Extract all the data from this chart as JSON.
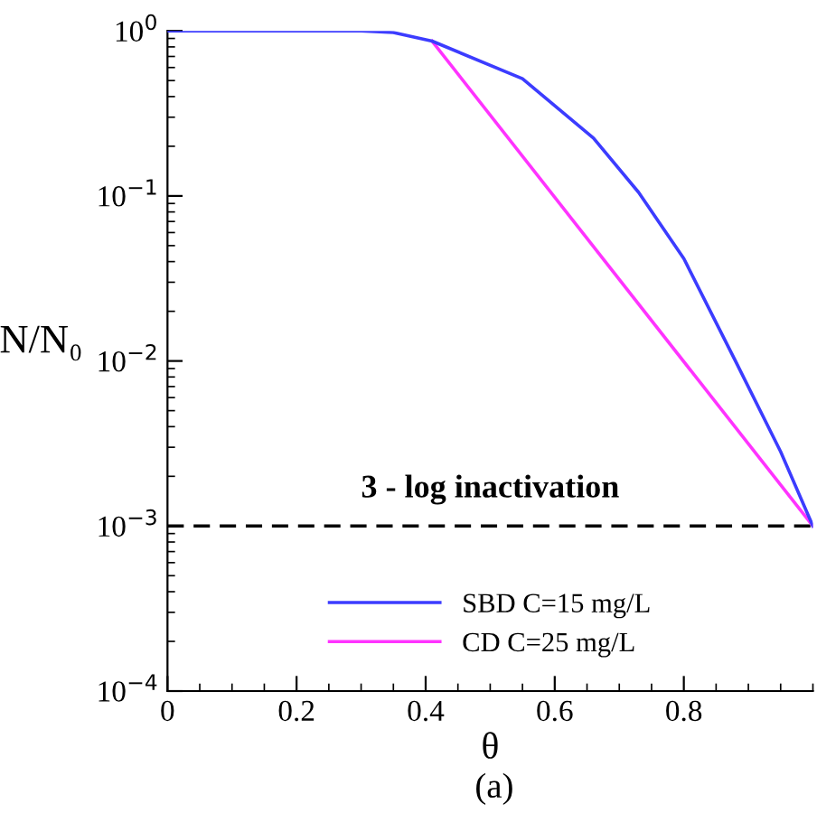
{
  "chart_data": {
    "type": "line",
    "xlabel": "θ",
    "ylabel": "N/N₀",
    "annotations": [
      "(a)"
    ],
    "series": [
      {
        "name": "SBD C=15 mg/L",
        "color": "#3c3cff",
        "x": [
          0,
          0.3,
          0.35,
          0.41,
          0.55,
          0.66,
          0.73,
          0.8,
          0.88,
          0.95,
          1.0
        ],
        "values": [
          1,
          1,
          0.977,
          0.867,
          0.513,
          0.224,
          0.105,
          0.0417,
          0.01,
          0.00282,
          0.001
        ]
      },
      {
        "name": "CD C=25 mg/L",
        "color": "#ff33ff",
        "x": [
          0.41,
          1.0
        ],
        "values": [
          0.867,
          0.001
        ]
      }
    ],
    "log": "y",
    "xlim": [
      0,
      1
    ],
    "ylim": [
      0.0001,
      1
    ],
    "xticks": [
      0,
      0.2,
      0.4,
      0.6,
      0.8
    ],
    "yticks": [
      {
        "value": 0.0001,
        "label": "10$^{−4}$"
      },
      {
        "value": 0.001,
        "label": "10$^{−3}$"
      },
      {
        "value": 0.01,
        "label": "10$^{−2}$"
      },
      {
        "value": 0.1,
        "label": "10$^{−1}$"
      },
      {
        "value": 1,
        "label": "10$^{0}$"
      }
    ],
    "ref_lines": [
      {
        "axis": "y",
        "value": 0.001,
        "label": "3 - log inactivation",
        "color": "#000000",
        "line_style": "dashed"
      }
    ],
    "legend": "bottom",
    "grid": false,
    "marker": "none",
    "line_style": "solid"
  }
}
